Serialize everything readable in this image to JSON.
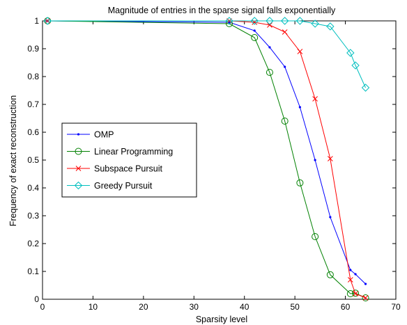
{
  "chart_data": {
    "type": "line",
    "title": "Magnitude of entries in the sparse signal falls exponentially",
    "xlabel": "Sparsity level",
    "ylabel": "Frequency of exact reconstruction",
    "xlim": [
      0,
      70
    ],
    "ylim": [
      0,
      1
    ],
    "xticks": [
      "0",
      "10",
      "20",
      "30",
      "40",
      "50",
      "60",
      "70"
    ],
    "yticks": [
      "0",
      "0.1",
      "0.2",
      "0.3",
      "0.4",
      "0.5",
      "0.6",
      "0.7",
      "0.8",
      "0.9",
      "1"
    ],
    "grid": false,
    "legend_position": "middle-left",
    "series": [
      {
        "name": "OMP",
        "color": "#0000ff",
        "marker": "point",
        "x": [
          1,
          37,
          42,
          45,
          48,
          51,
          54,
          57,
          61,
          62,
          64
        ],
        "y": [
          1.0,
          0.995,
          0.965,
          0.905,
          0.835,
          0.69,
          0.5,
          0.295,
          0.105,
          0.09,
          0.055
        ]
      },
      {
        "name": "Linear Programming",
        "color": "#008000",
        "marker": "circle",
        "x": [
          1,
          37,
          42,
          45,
          48,
          51,
          54,
          57,
          61,
          62,
          64
        ],
        "y": [
          1.0,
          0.99,
          0.94,
          0.815,
          0.64,
          0.418,
          0.225,
          0.088,
          0.02,
          0.022,
          0.005
        ]
      },
      {
        "name": "Subspace Pursuit",
        "color": "#ff0000",
        "marker": "x",
        "x": [
          1,
          37,
          42,
          45,
          48,
          51,
          54,
          57,
          61,
          62,
          64
        ],
        "y": [
          1.0,
          1.0,
          0.995,
          0.985,
          0.96,
          0.89,
          0.72,
          0.505,
          0.07,
          0.02,
          0.005
        ]
      },
      {
        "name": "Greedy Pursuit",
        "color": "#00bfbf",
        "marker": "diamond",
        "x": [
          1,
          37,
          42,
          45,
          48,
          51,
          54,
          57,
          61,
          62,
          64
        ],
        "y": [
          1.0,
          1.0,
          1.0,
          1.0,
          1.0,
          1.0,
          0.99,
          0.98,
          0.885,
          0.84,
          0.76
        ]
      }
    ]
  }
}
